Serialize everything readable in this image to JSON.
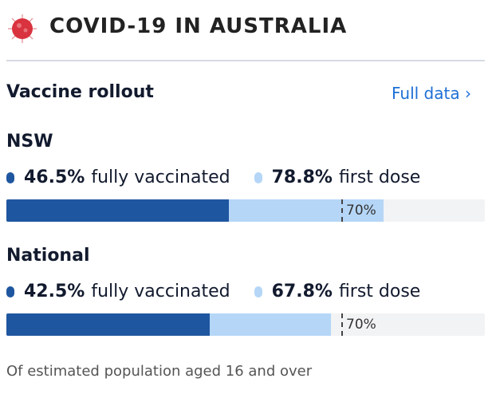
{
  "header": {
    "title": "COVID-19 IN AUSTRALIA",
    "icon": "coronavirus-icon"
  },
  "section": {
    "title": "Vaccine rollout",
    "link": "Full data",
    "link_icon": "chevron-right-icon"
  },
  "colors": {
    "fully": "#1f56a0",
    "first": "#b5d6f7",
    "track": "#f2f3f5",
    "link": "#1e6fd6"
  },
  "regions": [
    {
      "name": "NSW",
      "fully_value": "46.5%",
      "fully_label": "fully vaccinated",
      "first_value": "78.8%",
      "first_label": "first dose",
      "fully_pct": 46.5,
      "first_pct": 78.8,
      "target_pct": 70,
      "target_label": "70%"
    },
    {
      "name": "National",
      "fully_value": "42.5%",
      "fully_label": "fully vaccinated",
      "first_value": "67.8%",
      "first_label": "first dose",
      "fully_pct": 42.5,
      "first_pct": 67.8,
      "target_pct": 70,
      "target_label": "70%"
    }
  ],
  "footnote": "Of estimated population aged 16 and over"
}
